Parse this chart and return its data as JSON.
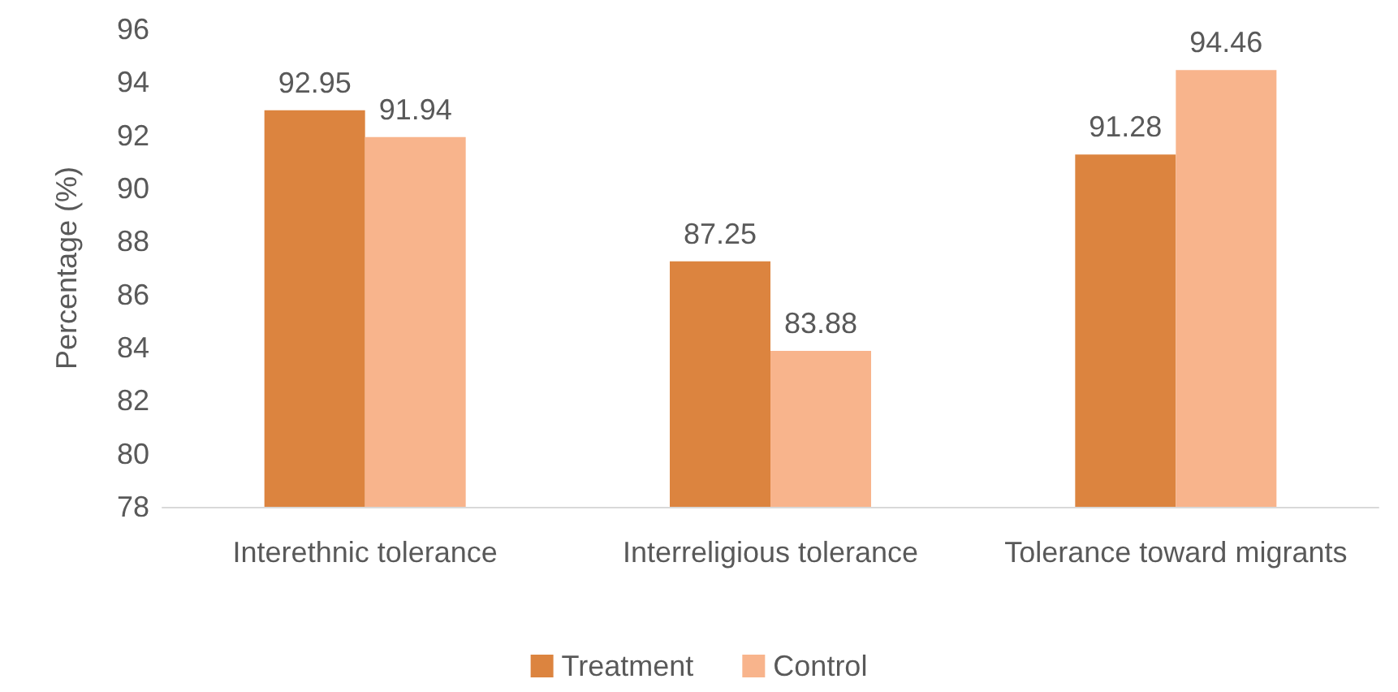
{
  "chart_data": {
    "type": "bar",
    "ylabel": "Percentage (%)",
    "categories": [
      "Interethnic tolerance",
      "Interreligious tolerance",
      "Tolerance toward migrants"
    ],
    "series": [
      {
        "name": "Treatment",
        "color": "#dc843f",
        "values": [
          92.95,
          87.25,
          91.28
        ]
      },
      {
        "name": "Control",
        "color": "#f8b48c",
        "values": [
          91.94,
          83.88,
          94.46
        ]
      }
    ],
    "ylim": [
      78,
      96
    ],
    "yticks": [
      78,
      80,
      82,
      84,
      86,
      88,
      90,
      92,
      94,
      96
    ],
    "data_labels": true,
    "legend": "bottom"
  }
}
